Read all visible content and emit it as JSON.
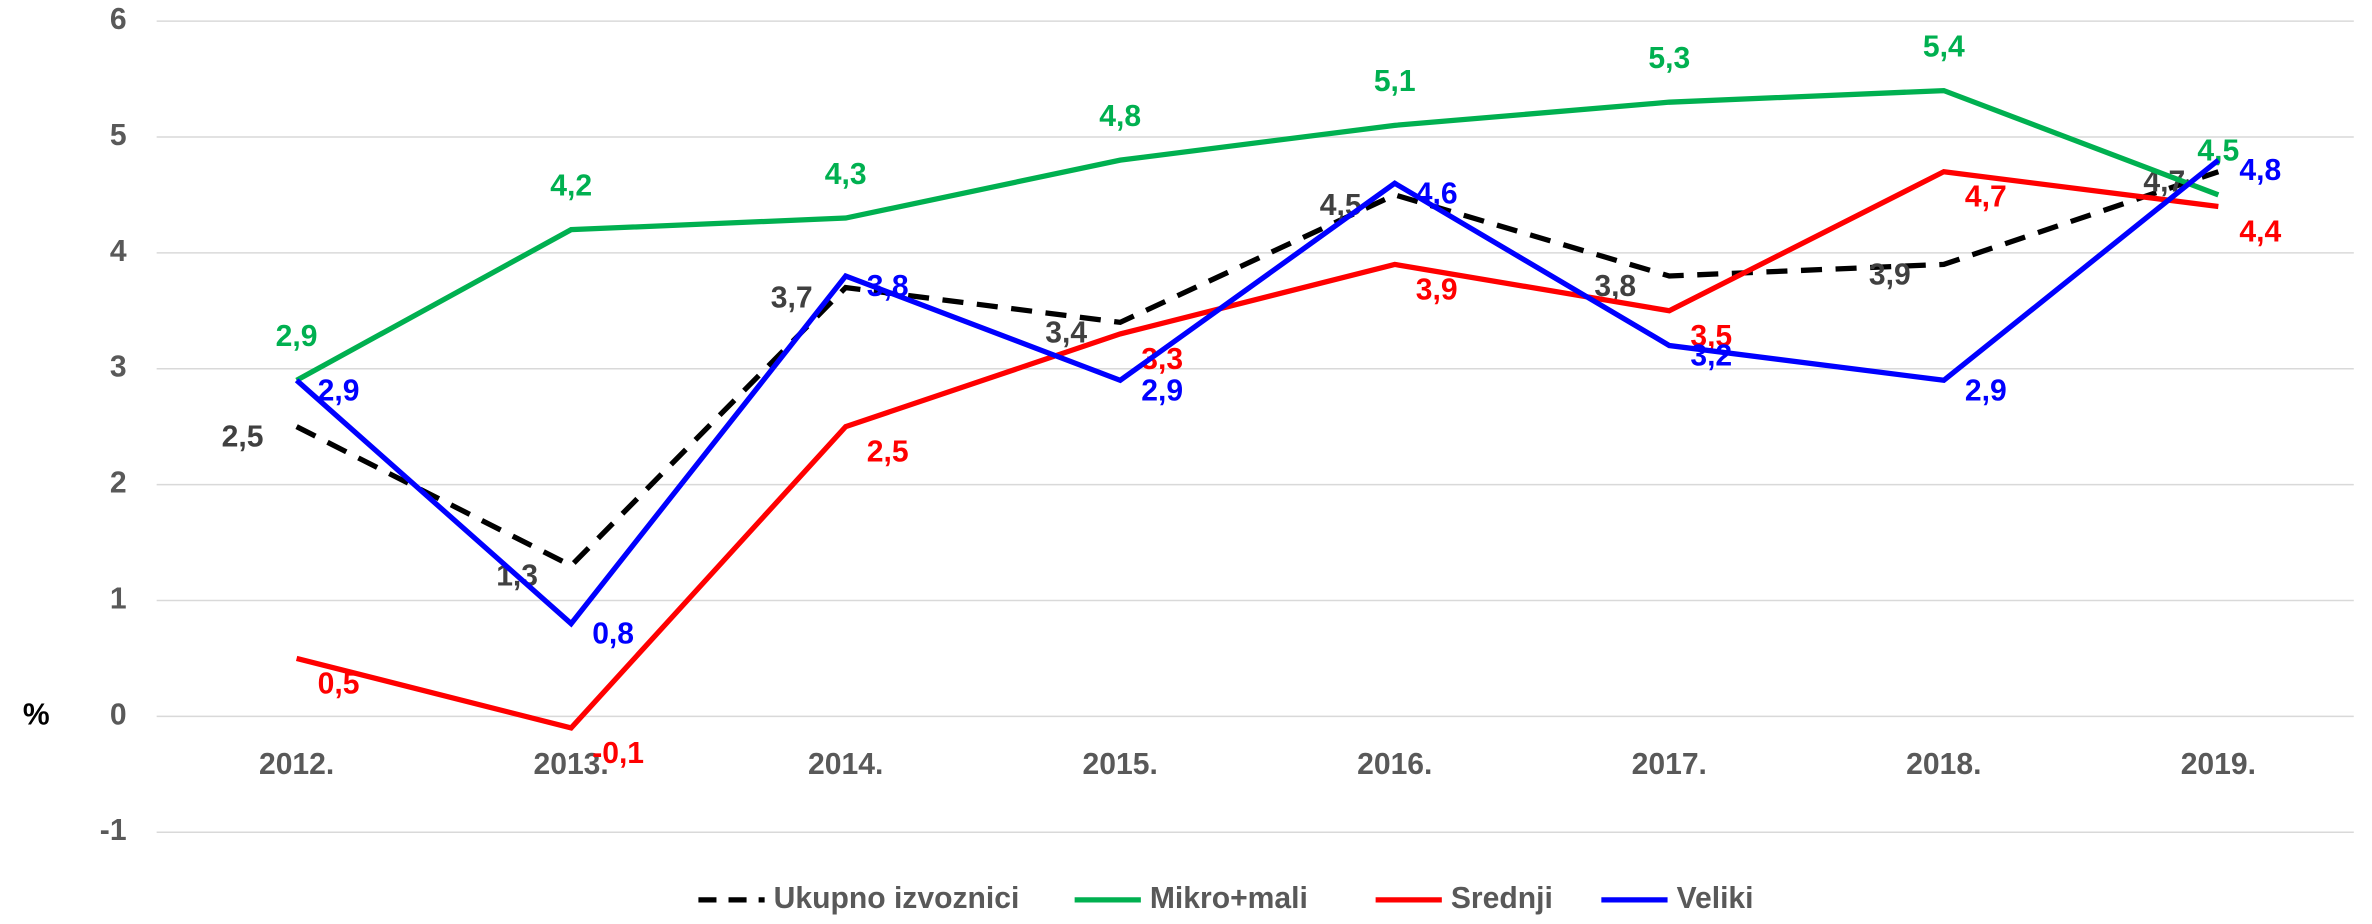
{
  "chart_data": {
    "type": "line",
    "y_label": "%",
    "categories": [
      "2012.",
      "2013.",
      "2014.",
      "2015.",
      "2016.",
      "2017.",
      "2018.",
      "2019."
    ],
    "ylim": [
      -1,
      6
    ],
    "yticks": [
      -1,
      0,
      1,
      2,
      3,
      4,
      5,
      6
    ],
    "grid": true,
    "legend": "bottom",
    "series": [
      {
        "name": "Ukupno izvoznici",
        "color": "#000000",
        "dash": true,
        "values": [
          2.5,
          1.3,
          3.7,
          3.4,
          4.5,
          3.8,
          3.9,
          4.7
        ],
        "value_labels": [
          "2,5",
          "1,3",
          "3,7",
          "3,4",
          "4,5",
          "3,8",
          "3,9",
          "4,7"
        ]
      },
      {
        "name": "Mikro+mali",
        "color": "#00b050",
        "dash": false,
        "values": [
          2.9,
          4.2,
          4.3,
          4.8,
          5.1,
          5.3,
          5.4,
          4.5
        ],
        "value_labels": [
          "2,9",
          "4,2",
          "4,3",
          "4,8",
          "5,1",
          "5,3",
          "5,4",
          "4,5"
        ]
      },
      {
        "name": "Srednji",
        "color": "#ff0000",
        "dash": false,
        "values": [
          0.5,
          -0.1,
          2.5,
          3.3,
          3.9,
          3.5,
          4.7,
          4.4
        ],
        "value_labels": [
          "0,5",
          "-0,1",
          "2,5",
          "3,3",
          "3,9",
          "3,5",
          "4,7",
          "4,4"
        ]
      },
      {
        "name": "Veliki",
        "color": "#0000ff",
        "dash": false,
        "values": [
          2.9,
          0.8,
          3.8,
          2.9,
          4.6,
          3.2,
          2.9,
          4.8
        ],
        "value_labels": [
          "2,9",
          "0,8",
          "3,8",
          "2,9",
          "4,6",
          "3,2",
          "2,9",
          "4,8"
        ]
      }
    ]
  }
}
